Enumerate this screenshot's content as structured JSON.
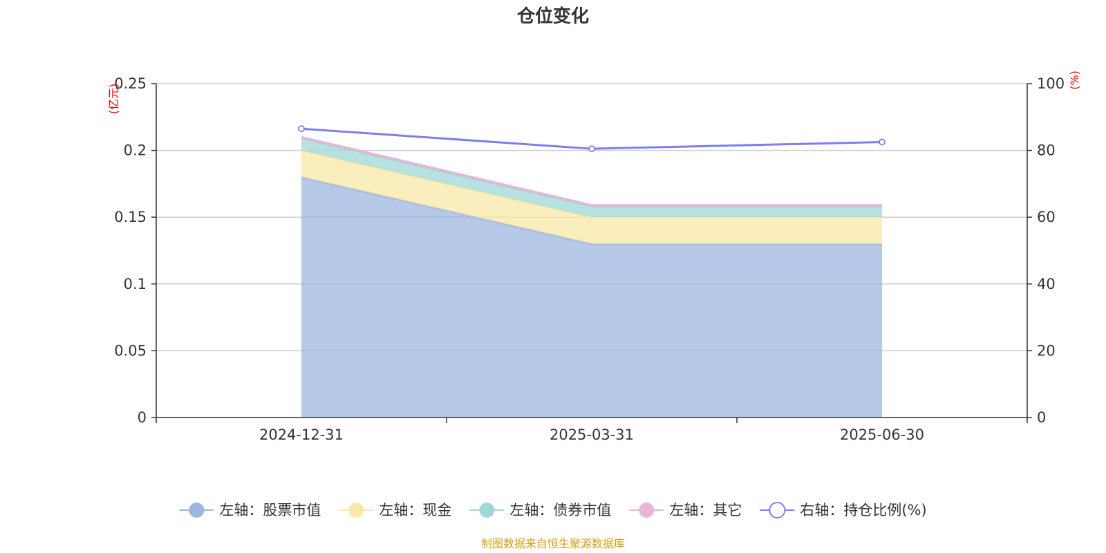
{
  "title": "仓位变化",
  "left_axis_unit": "(亿元)",
  "right_axis_unit": "(%)",
  "source_text": "制图数据来自恒生聚源数据库",
  "colors": {
    "stock": "#9db7e0",
    "cash": "#f9e8a8",
    "bond": "#a0d8d8",
    "other": "#e8b4d8",
    "ratio": "#7b7ef0",
    "grid": "#cccccc",
    "axis": "#333333"
  },
  "chart_data": {
    "type": "area",
    "title": "仓位变化",
    "categories": [
      "2024-12-31",
      "2025-03-31",
      "2025-06-30"
    ],
    "stacked": true,
    "left_axis": {
      "range": [
        0,
        0.25
      ],
      "ticks": [
        0,
        0.05,
        0.1,
        0.15,
        0.2,
        0.25
      ],
      "tick_labels": [
        "0",
        "0.05",
        "0.1",
        "0.15",
        "0.2",
        "0.25"
      ],
      "unit": "(亿元)"
    },
    "right_axis": {
      "range": [
        0,
        100
      ],
      "ticks": [
        0,
        20,
        40,
        60,
        80,
        100
      ],
      "tick_labels": [
        "0",
        "20",
        "40",
        "60",
        "80",
        "100"
      ],
      "unit": "(%)"
    },
    "series": [
      {
        "name": "左轴：股票市值",
        "axis": "left",
        "kind": "area",
        "color": "#9db7e0",
        "values": [
          0.18,
          0.13,
          0.13
        ]
      },
      {
        "name": "左轴：现金",
        "axis": "left",
        "kind": "area",
        "color": "#f9e8a8",
        "values": [
          0.02,
          0.02,
          0.02
        ]
      },
      {
        "name": "左轴：债券市值",
        "axis": "left",
        "kind": "area",
        "color": "#a0d8d8",
        "values": [
          0.009,
          0.008,
          0.008
        ]
      },
      {
        "name": "左轴：其它",
        "axis": "left",
        "kind": "area",
        "color": "#e8b4d8",
        "values": [
          0.001,
          0.001,
          0.001
        ]
      },
      {
        "name": "右轴：持仓比例(%)",
        "axis": "right",
        "kind": "line",
        "color": "#7b7ef0",
        "values": [
          86.5,
          80.5,
          82.5
        ]
      }
    ],
    "grid": true,
    "legend_position": "bottom"
  }
}
